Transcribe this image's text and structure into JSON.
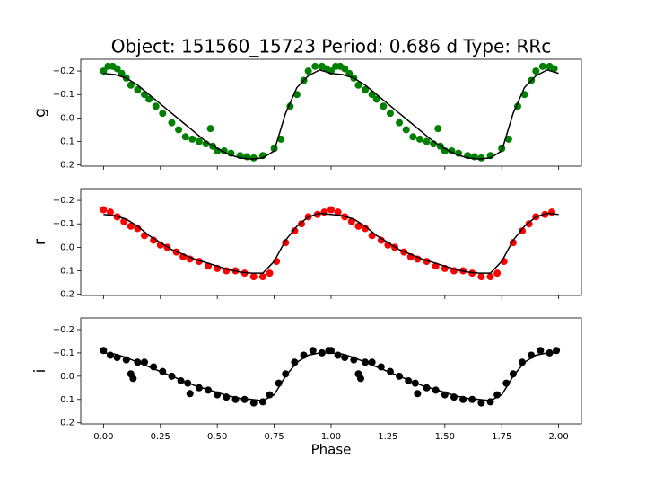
{
  "chart_data": [
    {
      "type": "scatter",
      "title": "Object: 151560_15723    Period: 0.686 d    Type: RRc",
      "ylabel": "g",
      "xlim": [
        -0.1,
        2.1
      ],
      "ylim": [
        0.205,
        -0.25
      ],
      "yticks": [
        {
          "value": -0.2,
          "label": "−0.2"
        },
        {
          "value": -0.1,
          "label": "−0.1"
        },
        {
          "value": 0,
          "label": "0.0"
        },
        0.1,
        0.2
      ],
      "series": [
        {
          "kind": "scatter",
          "color": "#008000",
          "x": [
            0,
            0.02,
            0.04,
            0.06,
            0.08,
            0.1,
            0.12,
            0.15,
            0.18,
            0.2,
            0.23,
            0.26,
            0.3,
            0.33,
            0.36,
            0.39,
            0.42,
            0.45,
            0.47,
            0.48,
            0.5,
            0.53,
            0.56,
            0.6,
            0.63,
            0.66,
            0.7,
            0.75,
            0.78,
            0.82,
            0.85,
            0.88,
            0.9,
            0.93,
            0.96,
            0.98,
            1,
            1.02,
            1.04,
            1.06,
            1.08,
            1.1,
            1.12,
            1.15,
            1.18,
            1.2,
            1.23,
            1.26,
            1.3,
            1.33,
            1.36,
            1.39,
            1.42,
            1.45,
            1.47,
            1.48,
            1.5,
            1.53,
            1.56,
            1.6,
            1.63,
            1.66,
            1.7,
            1.75,
            1.78,
            1.82,
            1.85,
            1.88,
            1.9,
            1.93,
            1.96,
            1.98
          ],
          "values": [
            -0.2,
            -0.22,
            -0.22,
            -0.21,
            -0.19,
            -0.17,
            -0.14,
            -0.12,
            -0.1,
            -0.08,
            -0.05,
            -0.02,
            0.02,
            0.05,
            0.08,
            0.09,
            0.1,
            0.11,
            0.045,
            0.12,
            0.14,
            0.14,
            0.15,
            0.16,
            0.165,
            0.17,
            0.16,
            0.13,
            0.09,
            -0.05,
            -0.1,
            -0.16,
            -0.2,
            -0.22,
            -0.22,
            -0.21,
            -0.2,
            -0.22,
            -0.22,
            -0.21,
            -0.19,
            -0.17,
            -0.14,
            -0.12,
            -0.1,
            -0.08,
            -0.05,
            -0.02,
            0.02,
            0.05,
            0.08,
            0.09,
            0.1,
            0.11,
            0.045,
            0.12,
            0.14,
            0.14,
            0.15,
            0.16,
            0.165,
            0.17,
            0.16,
            0.13,
            0.09,
            -0.05,
            -0.1,
            -0.16,
            -0.2,
            -0.22,
            -0.22,
            -0.21
          ]
        },
        {
          "kind": "line",
          "color": "#000000",
          "x": [
            0,
            0.05,
            0.1,
            0.15,
            0.2,
            0.25,
            0.3,
            0.35,
            0.4,
            0.45,
            0.5,
            0.55,
            0.6,
            0.65,
            0.7,
            0.75,
            0.8,
            0.85,
            0.9,
            0.95,
            1,
            1.05,
            1.1,
            1.15,
            1.2,
            1.25,
            1.3,
            1.35,
            1.4,
            1.45,
            1.5,
            1.55,
            1.6,
            1.65,
            1.7,
            1.75,
            1.8,
            1.85,
            1.9,
            1.95,
            2
          ],
          "values": [
            -0.19,
            -0.185,
            -0.17,
            -0.14,
            -0.1,
            -0.06,
            -0.02,
            0.02,
            0.06,
            0.1,
            0.13,
            0.155,
            0.17,
            0.175,
            0.17,
            0.14,
            -0.02,
            -0.13,
            -0.18,
            -0.205,
            -0.19,
            -0.185,
            -0.17,
            -0.14,
            -0.1,
            -0.06,
            -0.02,
            0.02,
            0.06,
            0.1,
            0.13,
            0.155,
            0.17,
            0.175,
            0.17,
            0.14,
            -0.02,
            -0.13,
            -0.18,
            -0.205,
            -0.19
          ]
        }
      ]
    },
    {
      "type": "scatter",
      "ylabel": "r",
      "xlim": [
        -0.1,
        2.1
      ],
      "ylim": [
        0.205,
        -0.25
      ],
      "yticks": [
        {
          "value": -0.2,
          "label": "−0.2"
        },
        {
          "value": -0.1,
          "label": "−0.1"
        },
        {
          "value": 0,
          "label": "0.0"
        },
        0.1,
        0.2
      ],
      "series": [
        {
          "kind": "scatter",
          "color": "#ff0000",
          "x": [
            0,
            0.03,
            0.06,
            0.09,
            0.12,
            0.15,
            0.18,
            0.22,
            0.25,
            0.28,
            0.32,
            0.35,
            0.38,
            0.42,
            0.46,
            0.5,
            0.54,
            0.58,
            0.62,
            0.66,
            0.7,
            0.73,
            0.76,
            0.8,
            0.84,
            0.87,
            0.9,
            0.94,
            0.97,
            1,
            1.03,
            1.06,
            1.09,
            1.12,
            1.15,
            1.18,
            1.22,
            1.25,
            1.28,
            1.32,
            1.35,
            1.38,
            1.42,
            1.46,
            1.5,
            1.54,
            1.58,
            1.62,
            1.66,
            1.7,
            1.73,
            1.76,
            1.8,
            1.84,
            1.87,
            1.9,
            1.94,
            1.97
          ],
          "values": [
            -0.16,
            -0.15,
            -0.13,
            -0.11,
            -0.09,
            -0.08,
            -0.05,
            -0.03,
            -0.01,
            0,
            0.02,
            0.04,
            0.05,
            0.06,
            0.08,
            0.09,
            0.1,
            0.1,
            0.11,
            0.125,
            0.125,
            0.11,
            0.06,
            -0.02,
            -0.07,
            -0.1,
            -0.13,
            -0.14,
            -0.15,
            -0.16,
            -0.15,
            -0.13,
            -0.11,
            -0.09,
            -0.08,
            -0.05,
            -0.03,
            -0.01,
            0,
            0.02,
            0.04,
            0.05,
            0.06,
            0.08,
            0.09,
            0.1,
            0.1,
            0.11,
            0.125,
            0.125,
            0.11,
            0.06,
            -0.02,
            -0.07,
            -0.1,
            -0.13,
            -0.14,
            -0.15
          ]
        },
        {
          "kind": "line",
          "color": "#000000",
          "x": [
            0,
            0.05,
            0.1,
            0.15,
            0.2,
            0.25,
            0.3,
            0.35,
            0.4,
            0.45,
            0.5,
            0.55,
            0.6,
            0.65,
            0.7,
            0.75,
            0.8,
            0.85,
            0.9,
            0.95,
            1,
            1.05,
            1.1,
            1.15,
            1.2,
            1.25,
            1.3,
            1.35,
            1.4,
            1.45,
            1.5,
            1.55,
            1.6,
            1.65,
            1.7,
            1.75,
            1.8,
            1.85,
            1.9,
            1.95,
            2
          ],
          "values": [
            -0.14,
            -0.135,
            -0.12,
            -0.09,
            -0.05,
            -0.02,
            0.01,
            0.03,
            0.05,
            0.065,
            0.08,
            0.095,
            0.105,
            0.11,
            0.11,
            0.06,
            -0.03,
            -0.09,
            -0.13,
            -0.145,
            -0.14,
            -0.135,
            -0.12,
            -0.09,
            -0.05,
            -0.02,
            0.01,
            0.03,
            0.05,
            0.065,
            0.08,
            0.095,
            0.105,
            0.11,
            0.11,
            0.06,
            -0.03,
            -0.09,
            -0.13,
            -0.145,
            -0.14
          ]
        }
      ]
    },
    {
      "type": "scatter",
      "ylabel": "i",
      "xlabel": "Phase",
      "xlim": [
        -0.1,
        2.1
      ],
      "ylim": [
        0.205,
        -0.25
      ],
      "xticks": [
        {
          "value": 0,
          "label": "0.00"
        },
        0.25,
        {
          "value": 0.5,
          "label": "0.50"
        },
        0.75,
        {
          "value": 1,
          "label": "1.00"
        },
        1.25,
        {
          "value": 1.5,
          "label": "1.50"
        },
        1.75,
        {
          "value": 2,
          "label": "2.00"
        }
      ],
      "yticks": [
        {
          "value": -0.2,
          "label": "−0.2"
        },
        {
          "value": -0.1,
          "label": "−0.1"
        },
        {
          "value": 0,
          "label": "0.0"
        },
        0.1,
        0.2
      ],
      "series": [
        {
          "kind": "scatter",
          "color": "#000000",
          "x": [
            0,
            0.03,
            0.06,
            0.1,
            0.12,
            0.13,
            0.15,
            0.18,
            0.22,
            0.26,
            0.3,
            0.34,
            0.37,
            0.38,
            0.42,
            0.46,
            0.5,
            0.54,
            0.58,
            0.62,
            0.66,
            0.7,
            0.73,
            0.77,
            0.8,
            0.84,
            0.88,
            0.92,
            0.96,
            0.99,
            1,
            1.03,
            1.06,
            1.1,
            1.12,
            1.13,
            1.15,
            1.18,
            1.22,
            1.26,
            1.3,
            1.34,
            1.37,
            1.38,
            1.42,
            1.46,
            1.5,
            1.54,
            1.58,
            1.62,
            1.66,
            1.7,
            1.73,
            1.77,
            1.8,
            1.84,
            1.88,
            1.92,
            1.96,
            1.99
          ],
          "values": [
            -0.11,
            -0.09,
            -0.08,
            -0.07,
            -0.01,
            0.01,
            -0.06,
            -0.06,
            -0.04,
            -0.02,
            0,
            0.02,
            0.03,
            0.075,
            0.05,
            0.06,
            0.08,
            0.09,
            0.1,
            0.1,
            0.115,
            0.11,
            0.08,
            0.03,
            -0.01,
            -0.06,
            -0.09,
            -0.11,
            -0.1,
            -0.11,
            -0.11,
            -0.09,
            -0.08,
            -0.07,
            -0.01,
            0.01,
            -0.06,
            -0.06,
            -0.04,
            -0.02,
            0,
            0.02,
            0.03,
            0.075,
            0.05,
            0.06,
            0.08,
            0.09,
            0.1,
            0.1,
            0.115,
            0.11,
            0.08,
            0.03,
            -0.01,
            -0.06,
            -0.09,
            -0.11,
            -0.1,
            -0.11
          ]
        },
        {
          "kind": "line",
          "color": "#000000",
          "x": [
            0,
            0.05,
            0.1,
            0.15,
            0.2,
            0.25,
            0.3,
            0.35,
            0.4,
            0.45,
            0.5,
            0.55,
            0.6,
            0.65,
            0.7,
            0.75,
            0.8,
            0.85,
            0.9,
            0.95,
            1,
            1.05,
            1.1,
            1.15,
            1.2,
            1.25,
            1.3,
            1.35,
            1.4,
            1.45,
            1.5,
            1.55,
            1.6,
            1.65,
            1.7,
            1.75,
            1.8,
            1.85,
            1.9,
            1.95,
            2
          ],
          "values": [
            -0.1,
            -0.095,
            -0.08,
            -0.06,
            -0.04,
            -0.02,
            0,
            0.02,
            0.04,
            0.055,
            0.07,
            0.085,
            0.095,
            0.1,
            0.105,
            0.08,
            0,
            -0.06,
            -0.09,
            -0.1,
            -0.1,
            -0.095,
            -0.08,
            -0.06,
            -0.04,
            -0.02,
            0,
            0.02,
            0.04,
            0.055,
            0.07,
            0.085,
            0.095,
            0.1,
            0.105,
            0.08,
            0,
            -0.06,
            -0.09,
            -0.1,
            -0.1
          ]
        }
      ]
    }
  ]
}
